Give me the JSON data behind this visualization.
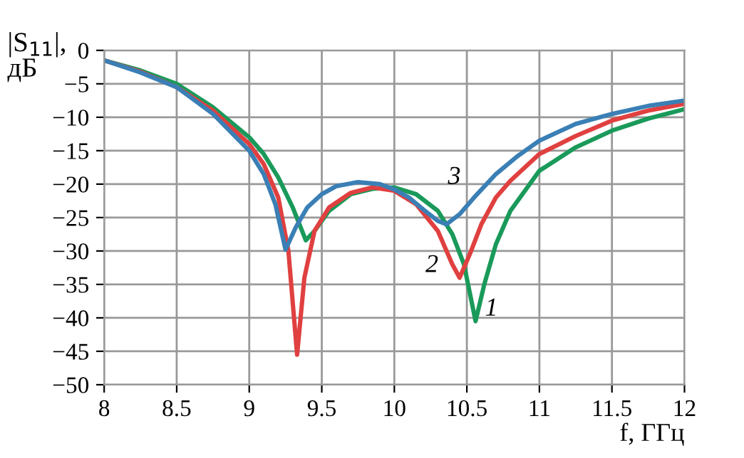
{
  "chart_data": {
    "type": "line",
    "ylabel": "|S$_{11}$|,\nдБ",
    "xlabel": "f, ГГц",
    "series": [
      {
        "name": "1",
        "color": "#1a9a5a",
        "x": [
          8,
          8.25,
          8.5,
          8.75,
          9,
          9.1,
          9.2,
          9.3,
          9.39,
          9.45,
          9.55,
          9.7,
          9.85,
          10,
          10.15,
          10.3,
          10.4,
          10.48,
          10.56,
          10.62,
          10.7,
          10.8,
          11,
          11.25,
          11.5,
          11.75,
          12
        ],
        "values": [
          -1.5,
          -3,
          -5,
          -8.5,
          -13,
          -15.5,
          -19,
          -23.5,
          -28.4,
          -27,
          -24,
          -21.5,
          -20.7,
          -20.5,
          -21.5,
          -24,
          -27.5,
          -32,
          -40.5,
          -35,
          -29,
          -24,
          -18,
          -14.5,
          -12,
          -10.2,
          -8.8
        ]
      },
      {
        "name": "2",
        "color": "#e04040",
        "x": [
          8,
          8.25,
          8.5,
          8.75,
          9,
          9.1,
          9.2,
          9.27,
          9.33,
          9.38,
          9.45,
          9.55,
          9.7,
          9.85,
          10,
          10.15,
          10.3,
          10.4,
          10.45,
          10.52,
          10.6,
          10.7,
          10.8,
          11,
          11.25,
          11.5,
          11.75,
          12
        ],
        "values": [
          -1.5,
          -3.2,
          -5.5,
          -9,
          -14,
          -17,
          -22,
          -30,
          -45.5,
          -34,
          -27,
          -23.5,
          -21.3,
          -20.5,
          -21,
          -23,
          -27,
          -32,
          -34,
          -30.5,
          -26,
          -22,
          -19.5,
          -15.5,
          -12.8,
          -10.5,
          -9,
          -8
        ]
      },
      {
        "name": "3",
        "color": "#3a7fb5",
        "x": [
          8,
          8.25,
          8.5,
          8.75,
          9,
          9.1,
          9.18,
          9.25,
          9.32,
          9.4,
          9.5,
          9.6,
          9.75,
          9.9,
          10,
          10.1,
          10.2,
          10.3,
          10.36,
          10.45,
          10.55,
          10.7,
          10.85,
          11,
          11.25,
          11.5,
          11.75,
          12
        ],
        "values": [
          -1.5,
          -3.3,
          -5.5,
          -9.5,
          -15,
          -18.5,
          -23,
          -29.8,
          -26.5,
          -23.5,
          -21.5,
          -20.3,
          -19.7,
          -20,
          -20.8,
          -22,
          -23.8,
          -25.5,
          -26,
          -24.5,
          -22,
          -18.5,
          -15.8,
          -13.5,
          -11,
          -9.5,
          -8.3,
          -7.5
        ]
      }
    ],
    "xlim": [
      8,
      12
    ],
    "xticks": [
      8,
      8.5,
      9,
      9.5,
      10,
      10.5,
      11,
      11.5,
      12
    ],
    "ylim": [
      -50,
      0
    ],
    "yticks": [
      0,
      -5,
      -10,
      -15,
      -20,
      -25,
      -30,
      -35,
      -40,
      -45,
      -50
    ],
    "grid": true,
    "legend": false,
    "line_style": "solid",
    "marker": "none"
  }
}
